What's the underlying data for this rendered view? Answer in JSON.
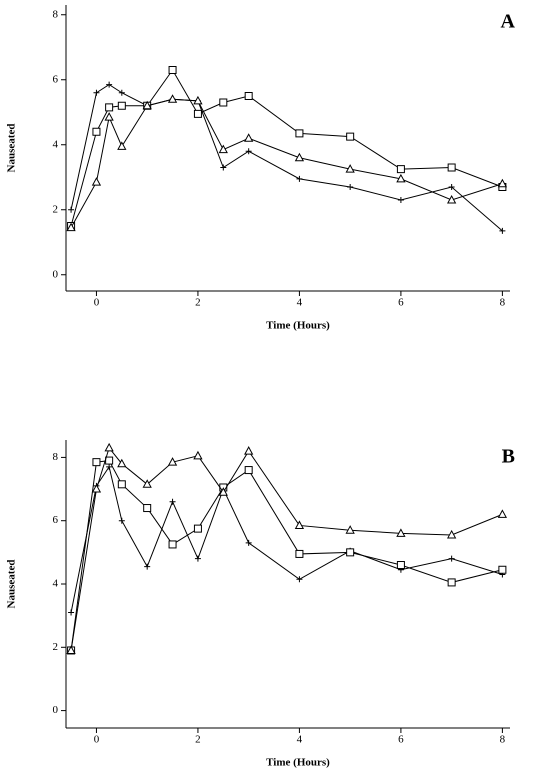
{
  "chart_data": [
    {
      "type": "line",
      "annotation": "A",
      "xlabel": "Time (Hours)",
      "ylabel": "Nauseated",
      "x": [
        -0.5,
        0,
        0.25,
        0.5,
        1,
        1.5,
        2,
        2.5,
        3,
        4,
        5,
        6,
        7,
        8
      ],
      "xlim": [
        -0.6,
        8.15
      ],
      "xticks": [
        0,
        2,
        4,
        6,
        8
      ],
      "ylim": [
        -0.5,
        8.3
      ],
      "yticks": [
        0,
        2,
        4,
        6,
        8
      ],
      "series": [
        {
          "marker": "plus",
          "color": "#000000",
          "values": [
            2.0,
            5.6,
            5.85,
            5.6,
            5.2,
            5.4,
            5.35,
            3.3,
            3.8,
            2.95,
            2.7,
            2.3,
            2.7,
            1.35
          ]
        },
        {
          "marker": "square",
          "color": "#000000",
          "values": [
            1.5,
            4.4,
            5.15,
            5.2,
            5.2,
            6.3,
            4.95,
            5.3,
            5.5,
            4.35,
            4.25,
            3.25,
            3.3,
            2.7
          ]
        },
        {
          "marker": "triangle",
          "color": "#000000",
          "values": [
            1.45,
            2.85,
            4.85,
            3.95,
            5.2,
            5.4,
            5.35,
            3.85,
            4.2,
            3.6,
            3.25,
            2.95,
            2.3,
            2.8
          ]
        }
      ]
    },
    {
      "type": "line",
      "annotation": "B",
      "xlabel": "Time (Hours)",
      "ylabel": "Nauseated",
      "x": [
        -0.5,
        0,
        0.25,
        0.5,
        1,
        1.5,
        2,
        2.5,
        3,
        4,
        5,
        6,
        7,
        8
      ],
      "xlim": [
        -0.6,
        8.15
      ],
      "xticks": [
        0,
        2,
        4,
        6,
        8
      ],
      "ylim": [
        -0.55,
        8.55
      ],
      "yticks": [
        0,
        2,
        4,
        6,
        8
      ],
      "series": [
        {
          "marker": "plus",
          "color": "#000000",
          "values": [
            3.1,
            7.1,
            7.7,
            6.0,
            4.55,
            6.6,
            4.8,
            7.0,
            5.3,
            4.15,
            5.05,
            4.45,
            4.8,
            4.3
          ]
        },
        {
          "marker": "square",
          "color": "#000000",
          "values": [
            1.9,
            7.85,
            7.9,
            7.15,
            6.4,
            5.25,
            5.75,
            7.05,
            7.6,
            4.95,
            5.0,
            4.6,
            4.05,
            4.45
          ]
        },
        {
          "marker": "triangle",
          "color": "#000000",
          "values": [
            1.9,
            7.0,
            8.3,
            7.8,
            7.15,
            7.85,
            8.05,
            6.9,
            8.2,
            5.85,
            5.7,
            5.6,
            5.55,
            6.2
          ]
        }
      ]
    }
  ]
}
